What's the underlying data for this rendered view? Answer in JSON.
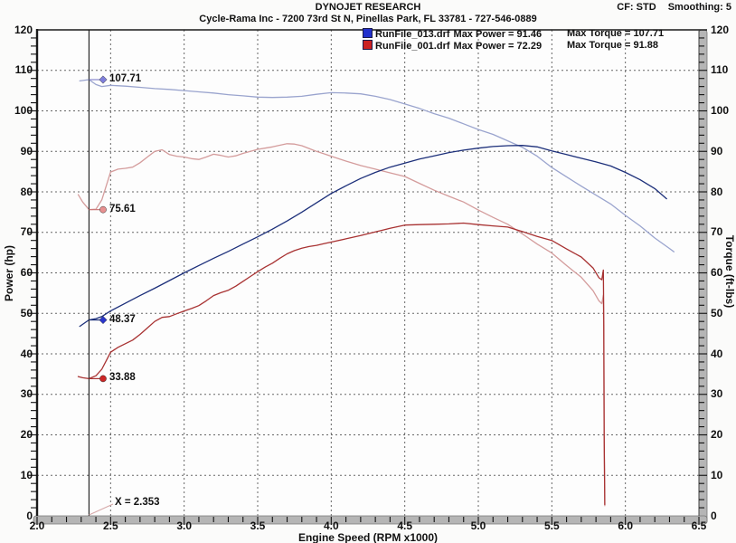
{
  "header": {
    "title": "DYNOJET RESEARCH",
    "subtitle": "Cycle-Rama Inc - 7200 73rd St N, Pinellas Park, FL 33781 - 727-546-0889",
    "cf_label": "CF: STD",
    "smoothing_label": "Smoothing: 5"
  },
  "legend": {
    "entries": [
      {
        "file": "RunFile_013.drf",
        "power": "Max Power = 91.46",
        "torque": "Max Torque = 107.71",
        "color": "#2230cc"
      },
      {
        "file": "RunFile_001.drf",
        "power": "Max Power = 72.29",
        "torque": "Max Torque = 91.88",
        "color": "#cc2222"
      }
    ]
  },
  "axes": {
    "x_title": "Engine Speed (RPM x1000)",
    "y_left_title": "Power (hp)",
    "y_right_title": "Torque (ft-lbs)",
    "y_tick_labels": [
      "0",
      "10",
      "20",
      "30",
      "40",
      "50",
      "60",
      "70",
      "80",
      "90",
      "100",
      "110",
      "120"
    ],
    "x_tick_labels": [
      "2.0",
      "2.5",
      "3.0",
      "3.5",
      "4.0",
      "4.5",
      "5.0",
      "5.5",
      "6.0",
      "6.5"
    ]
  },
  "cursor": {
    "x": 2.353,
    "label": "X = 2.353",
    "markers": [
      {
        "label": "107.71",
        "value": 107.71,
        "shape": "diamond",
        "color": "#7e7edb",
        "leader": "#8888cc"
      },
      {
        "label": "75.61",
        "value": 75.61,
        "shape": "circle",
        "color": "#e89090",
        "leader": "#cc7777"
      },
      {
        "label": "48.37",
        "value": 48.37,
        "shape": "diamond",
        "color": "#2a35cc",
        "leader": "#1c2f7a"
      },
      {
        "label": "33.88",
        "value": 33.88,
        "shape": "circle",
        "color": "#cc2626",
        "leader": "#a83232"
      }
    ]
  },
  "chart_data": {
    "type": "line",
    "title": "DYNOJET RESEARCH",
    "xlabel": "Engine Speed (RPM x1000)",
    "ylabel_left": "Power (hp)",
    "ylabel_right": "Torque (ft-lbs)",
    "xlim": [
      2.0,
      6.5
    ],
    "ylim": [
      0,
      120
    ],
    "x_major_step": 0.5,
    "x_minor_step": 0.1,
    "y_major_step": 10,
    "y_minor_step": 2,
    "grid": "dotted",
    "grid_color": "#666666",
    "legend_position": "top-center-inside",
    "series": [
      {
        "name": "RunFile_013 Torque (ft-lbs)",
        "color": "#9aa4ce",
        "max": 107.71,
        "points": [
          [
            2.29,
            107.4
          ],
          [
            2.353,
            107.71
          ],
          [
            2.4,
            106.5
          ],
          [
            2.44,
            106.0
          ],
          [
            2.5,
            106.3
          ],
          [
            2.6,
            106.1
          ],
          [
            2.7,
            105.8
          ],
          [
            2.8,
            105.5
          ],
          [
            2.9,
            105.3
          ],
          [
            3.0,
            105.0
          ],
          [
            3.1,
            104.7
          ],
          [
            3.2,
            104.4
          ],
          [
            3.3,
            104.0
          ],
          [
            3.4,
            103.7
          ],
          [
            3.5,
            103.4
          ],
          [
            3.6,
            103.3
          ],
          [
            3.7,
            103.4
          ],
          [
            3.8,
            103.6
          ],
          [
            3.9,
            104.1
          ],
          [
            4.0,
            104.5
          ],
          [
            4.1,
            104.4
          ],
          [
            4.2,
            104.2
          ],
          [
            4.3,
            103.6
          ],
          [
            4.4,
            102.8
          ],
          [
            4.5,
            101.7
          ],
          [
            4.6,
            100.6
          ],
          [
            4.7,
            99.3
          ],
          [
            4.8,
            98.2
          ],
          [
            4.9,
            96.8
          ],
          [
            5.0,
            95.4
          ],
          [
            5.1,
            94.2
          ],
          [
            5.2,
            92.6
          ],
          [
            5.3,
            91.0
          ],
          [
            5.4,
            88.8
          ],
          [
            5.5,
            86.0
          ],
          [
            5.6,
            83.7
          ],
          [
            5.7,
            81.4
          ],
          [
            5.8,
            79.2
          ],
          [
            5.9,
            77.0
          ],
          [
            6.0,
            74.2
          ],
          [
            6.1,
            71.6
          ],
          [
            6.2,
            68.6
          ],
          [
            6.3,
            66.0
          ],
          [
            6.33,
            65.2
          ]
        ]
      },
      {
        "name": "RunFile_001 Torque (ft-lbs)",
        "color": "#d49c9c",
        "max": 91.88,
        "points": [
          [
            2.28,
            79.3
          ],
          [
            2.31,
            77.5
          ],
          [
            2.353,
            75.61
          ],
          [
            2.4,
            75.7
          ],
          [
            2.44,
            78.0
          ],
          [
            2.47,
            81.5
          ],
          [
            2.5,
            84.9
          ],
          [
            2.55,
            85.6
          ],
          [
            2.6,
            85.8
          ],
          [
            2.65,
            86.1
          ],
          [
            2.7,
            87.2
          ],
          [
            2.75,
            88.6
          ],
          [
            2.8,
            90.0
          ],
          [
            2.85,
            90.4
          ],
          [
            2.9,
            89.2
          ],
          [
            2.95,
            88.8
          ],
          [
            3.0,
            88.6
          ],
          [
            3.05,
            88.2
          ],
          [
            3.1,
            88.0
          ],
          [
            3.15,
            88.6
          ],
          [
            3.2,
            89.3
          ],
          [
            3.25,
            89.0
          ],
          [
            3.3,
            88.6
          ],
          [
            3.35,
            88.9
          ],
          [
            3.4,
            89.5
          ],
          [
            3.45,
            90.0
          ],
          [
            3.5,
            90.5
          ],
          [
            3.55,
            90.8
          ],
          [
            3.6,
            91.1
          ],
          [
            3.65,
            91.5
          ],
          [
            3.7,
            91.88
          ],
          [
            3.75,
            91.8
          ],
          [
            3.8,
            91.4
          ],
          [
            3.85,
            90.7
          ],
          [
            3.9,
            90.0
          ],
          [
            3.95,
            89.4
          ],
          [
            4.0,
            88.8
          ],
          [
            4.1,
            87.6
          ],
          [
            4.2,
            86.5
          ],
          [
            4.3,
            85.6
          ],
          [
            4.4,
            84.7
          ],
          [
            4.5,
            83.8
          ],
          [
            4.6,
            82.1
          ],
          [
            4.7,
            80.4
          ],
          [
            4.8,
            78.9
          ],
          [
            4.9,
            77.5
          ],
          [
            5.0,
            75.5
          ],
          [
            5.1,
            73.7
          ],
          [
            5.2,
            72.0
          ],
          [
            5.3,
            69.6
          ],
          [
            5.4,
            67.1
          ],
          [
            5.5,
            64.9
          ],
          [
            5.6,
            61.8
          ],
          [
            5.7,
            58.9
          ],
          [
            5.78,
            55.6
          ],
          [
            5.82,
            53.1
          ],
          [
            5.84,
            52.4
          ],
          [
            5.85,
            54.5
          ],
          [
            5.853,
            42.0
          ],
          [
            5.856,
            18.0
          ],
          [
            5.86,
            2.5
          ]
        ]
      },
      {
        "name": "RunFile_013 Power (hp)",
        "color": "#1c2f7a",
        "max": 91.46,
        "points": [
          [
            2.29,
            46.8
          ],
          [
            2.353,
            48.37
          ],
          [
            2.4,
            48.7
          ],
          [
            2.44,
            49.2
          ],
          [
            2.5,
            50.6
          ],
          [
            2.6,
            52.5
          ],
          [
            2.7,
            54.4
          ],
          [
            2.8,
            56.2
          ],
          [
            2.9,
            58.1
          ],
          [
            3.0,
            60.0
          ],
          [
            3.1,
            61.8
          ],
          [
            3.2,
            63.6
          ],
          [
            3.3,
            65.3
          ],
          [
            3.4,
            67.1
          ],
          [
            3.5,
            68.9
          ],
          [
            3.6,
            70.8
          ],
          [
            3.7,
            72.8
          ],
          [
            3.8,
            75.0
          ],
          [
            3.9,
            77.3
          ],
          [
            4.0,
            79.6
          ],
          [
            4.1,
            81.5
          ],
          [
            4.2,
            83.3
          ],
          [
            4.3,
            84.8
          ],
          [
            4.4,
            86.1
          ],
          [
            4.5,
            87.1
          ],
          [
            4.6,
            88.1
          ],
          [
            4.7,
            88.9
          ],
          [
            4.8,
            89.7
          ],
          [
            4.9,
            90.3
          ],
          [
            5.0,
            90.8
          ],
          [
            5.1,
            91.2
          ],
          [
            5.2,
            91.4
          ],
          [
            5.3,
            91.46
          ],
          [
            5.4,
            91.1
          ],
          [
            5.5,
            90.1
          ],
          [
            5.6,
            89.2
          ],
          [
            5.7,
            88.3
          ],
          [
            5.8,
            87.4
          ],
          [
            5.9,
            86.4
          ],
          [
            6.0,
            84.8
          ],
          [
            6.1,
            83.0
          ],
          [
            6.2,
            80.8
          ],
          [
            6.28,
            78.3
          ]
        ]
      },
      {
        "name": "RunFile_001 Power (hp)",
        "color": "#a83232",
        "max": 72.29,
        "points": [
          [
            2.28,
            34.4
          ],
          [
            2.31,
            34.1
          ],
          [
            2.353,
            33.88
          ],
          [
            2.4,
            34.6
          ],
          [
            2.44,
            36.2
          ],
          [
            2.47,
            38.3
          ],
          [
            2.5,
            40.4
          ],
          [
            2.55,
            41.6
          ],
          [
            2.6,
            42.5
          ],
          [
            2.65,
            43.4
          ],
          [
            2.7,
            44.8
          ],
          [
            2.75,
            46.4
          ],
          [
            2.8,
            48.0
          ],
          [
            2.85,
            49.0
          ],
          [
            2.9,
            49.2
          ],
          [
            2.95,
            49.9
          ],
          [
            3.0,
            50.6
          ],
          [
            3.05,
            51.2
          ],
          [
            3.1,
            51.9
          ],
          [
            3.15,
            53.1
          ],
          [
            3.2,
            54.4
          ],
          [
            3.25,
            55.1
          ],
          [
            3.3,
            55.7
          ],
          [
            3.35,
            56.7
          ],
          [
            3.4,
            57.9
          ],
          [
            3.45,
            59.1
          ],
          [
            3.5,
            60.3
          ],
          [
            3.55,
            61.4
          ],
          [
            3.6,
            62.4
          ],
          [
            3.65,
            63.6
          ],
          [
            3.7,
            64.7
          ],
          [
            3.75,
            65.5
          ],
          [
            3.8,
            66.1
          ],
          [
            3.85,
            66.5
          ],
          [
            3.9,
            66.8
          ],
          [
            3.95,
            67.2
          ],
          [
            4.0,
            67.6
          ],
          [
            4.1,
            68.4
          ],
          [
            4.2,
            69.2
          ],
          [
            4.3,
            70.1
          ],
          [
            4.4,
            71.0
          ],
          [
            4.5,
            71.8
          ],
          [
            4.6,
            71.9
          ],
          [
            4.7,
            72.0
          ],
          [
            4.8,
            72.1
          ],
          [
            4.9,
            72.29
          ],
          [
            5.0,
            71.9
          ],
          [
            5.1,
            71.6
          ],
          [
            5.2,
            71.3
          ],
          [
            5.3,
            70.2
          ],
          [
            5.4,
            69.0
          ],
          [
            5.5,
            68.0
          ],
          [
            5.6,
            65.9
          ],
          [
            5.7,
            63.9
          ],
          [
            5.78,
            61.2
          ],
          [
            5.82,
            58.8
          ],
          [
            5.84,
            58.3
          ],
          [
            5.85,
            60.7
          ],
          [
            5.853,
            46.8
          ],
          [
            5.856,
            20.1
          ],
          [
            5.86,
            2.8
          ]
        ]
      }
    ]
  }
}
